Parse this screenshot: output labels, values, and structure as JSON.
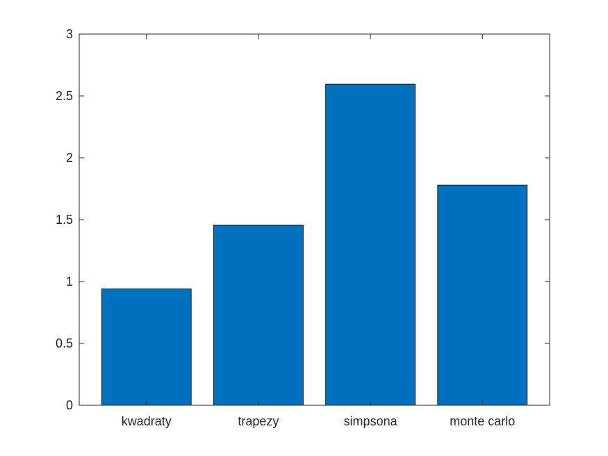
{
  "chart_data": {
    "type": "bar",
    "categories": [
      "kwadraty",
      "trapezy",
      "simpsona",
      "monte carlo"
    ],
    "values": [
      0.94,
      1.455,
      2.595,
      1.78
    ],
    "ylim": [
      0,
      3
    ],
    "yticks": [
      0,
      0.5,
      1,
      1.5,
      2,
      2.5,
      3
    ],
    "ytick_labels": [
      "0",
      "0.5",
      "1",
      "1.5",
      "2",
      "2.5",
      "3"
    ],
    "grid": false,
    "colors": {
      "bar": "#0072BD",
      "axis": "#262626",
      "background": "#ffffff"
    }
  }
}
